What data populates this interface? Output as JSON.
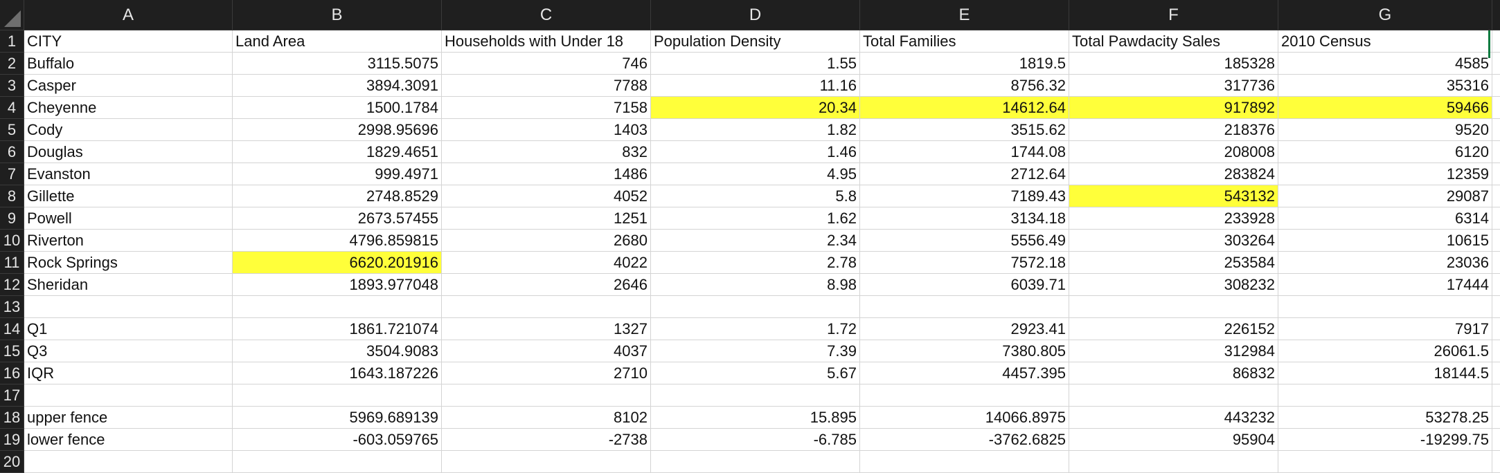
{
  "columns": [
    "A",
    "B",
    "C",
    "D",
    "E",
    "F",
    "G"
  ],
  "highlight_color": "#ffff3a",
  "rows": [
    {
      "num": "1",
      "cells": [
        "CITY",
        "Land Area",
        "Households with Under 18",
        "Population Density",
        "Total Families",
        "Total Pawdacity Sales",
        "2010 Census"
      ],
      "highlight": []
    },
    {
      "num": "2",
      "cells": [
        "Buffalo",
        "3115.5075",
        "746",
        "1.55",
        "1819.5",
        "185328",
        "4585"
      ],
      "highlight": []
    },
    {
      "num": "3",
      "cells": [
        "Casper",
        "3894.3091",
        "7788",
        "11.16",
        "8756.32",
        "317736",
        "35316"
      ],
      "highlight": []
    },
    {
      "num": "4",
      "cells": [
        "Cheyenne",
        "1500.1784",
        "7158",
        "20.34",
        "14612.64",
        "917892",
        "59466"
      ],
      "highlight": [
        3,
        4,
        5,
        6
      ]
    },
    {
      "num": "5",
      "cells": [
        "Cody",
        "2998.95696",
        "1403",
        "1.82",
        "3515.62",
        "218376",
        "9520"
      ],
      "highlight": []
    },
    {
      "num": "6",
      "cells": [
        "Douglas",
        "1829.4651",
        "832",
        "1.46",
        "1744.08",
        "208008",
        "6120"
      ],
      "highlight": []
    },
    {
      "num": "7",
      "cells": [
        "Evanston",
        "999.4971",
        "1486",
        "4.95",
        "2712.64",
        "283824",
        "12359"
      ],
      "highlight": []
    },
    {
      "num": "8",
      "cells": [
        "Gillette",
        "2748.8529",
        "4052",
        "5.8",
        "7189.43",
        "543132",
        "29087"
      ],
      "highlight": [
        5
      ]
    },
    {
      "num": "9",
      "cells": [
        "Powell",
        "2673.57455",
        "1251",
        "1.62",
        "3134.18",
        "233928",
        "6314"
      ],
      "highlight": []
    },
    {
      "num": "10",
      "cells": [
        "Riverton",
        "4796.859815",
        "2680",
        "2.34",
        "5556.49",
        "303264",
        "10615"
      ],
      "highlight": []
    },
    {
      "num": "11",
      "cells": [
        "Rock Springs",
        "6620.201916",
        "4022",
        "2.78",
        "7572.18",
        "253584",
        "23036"
      ],
      "highlight": [
        1
      ]
    },
    {
      "num": "12",
      "cells": [
        "Sheridan",
        "1893.977048",
        "2646",
        "8.98",
        "6039.71",
        "308232",
        "17444"
      ],
      "highlight": []
    },
    {
      "num": "13",
      "cells": [
        "",
        "",
        "",
        "",
        "",
        "",
        ""
      ],
      "highlight": []
    },
    {
      "num": "14",
      "cells": [
        "Q1",
        "1861.721074",
        "1327",
        "1.72",
        "2923.41",
        "226152",
        "7917"
      ],
      "highlight": []
    },
    {
      "num": "15",
      "cells": [
        "Q3",
        "3504.9083",
        "4037",
        "7.39",
        "7380.805",
        "312984",
        "26061.5"
      ],
      "highlight": []
    },
    {
      "num": "16",
      "cells": [
        "IQR",
        "1643.187226",
        "2710",
        "5.67",
        "4457.395",
        "86832",
        "18144.5"
      ],
      "highlight": []
    },
    {
      "num": "17",
      "cells": [
        "",
        "",
        "",
        "",
        "",
        "",
        ""
      ],
      "highlight": []
    },
    {
      "num": "18",
      "cells": [
        "upper fence",
        "5969.689139",
        "8102",
        "15.895",
        "14066.8975",
        "443232",
        "53278.25"
      ],
      "highlight": []
    },
    {
      "num": "19",
      "cells": [
        "lower fence",
        "-603.059765",
        "-2738",
        "-6.785",
        "-3762.6825",
        "95904",
        "-19299.75"
      ],
      "highlight": []
    },
    {
      "num": "20",
      "cells": [
        "",
        "",
        "",
        "",
        "",
        "",
        ""
      ],
      "highlight": []
    }
  ]
}
